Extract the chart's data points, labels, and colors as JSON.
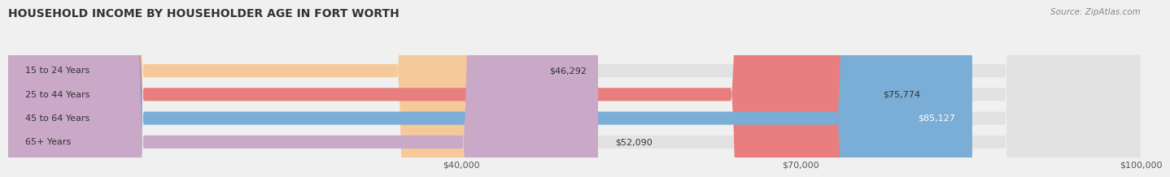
{
  "title": "HOUSEHOLD INCOME BY HOUSEHOLDER AGE IN FORT WORTH",
  "source": "Source: ZipAtlas.com",
  "categories": [
    "15 to 24 Years",
    "25 to 44 Years",
    "45 to 64 Years",
    "65+ Years"
  ],
  "values": [
    46292,
    75774,
    85127,
    52090
  ],
  "bar_colors": [
    "#f5c99a",
    "#e87e7e",
    "#7aaed6",
    "#c9a8c8"
  ],
  "label_colors": [
    "#444444",
    "#444444",
    "#ffffff",
    "#444444"
  ],
  "value_labels": [
    "$46,292",
    "$75,774",
    "$85,127",
    "$52,090"
  ],
  "x_min": 0,
  "x_max": 100000,
  "x_ticks": [
    40000,
    70000,
    100000
  ],
  "x_tick_labels": [
    "$40,000",
    "$70,000",
    "$100,000"
  ],
  "bar_height": 0.55,
  "bg_color": "#f0f0f0",
  "bar_bg_color": "#e2e2e2",
  "title_fontsize": 10,
  "source_fontsize": 7.5,
  "label_fontsize": 8,
  "value_fontsize": 8,
  "tick_fontsize": 8
}
